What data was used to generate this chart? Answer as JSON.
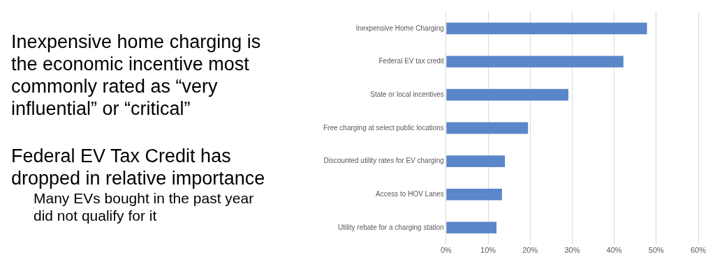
{
  "chart_data": {
    "type": "bar",
    "orientation": "horizontal",
    "categories": [
      "Inexpensive Home Charging",
      "Federal EV tax credit",
      "State or local incentives",
      "Free charging at select public locations",
      "Discounted utility rates for EV charging",
      "Access to HOV Lanes",
      "Utility rebate for a charging station"
    ],
    "values": [
      47.8,
      42.2,
      29.1,
      19.5,
      14.0,
      13.3,
      12.0
    ],
    "color": "#5b86c9",
    "xlim": [
      0,
      60
    ],
    "xticks": [
      {
        "value": 0,
        "label": "0%"
      },
      {
        "value": 10,
        "label": "10%"
      },
      {
        "value": 20,
        "label": "20%"
      },
      {
        "value": 30,
        "label": "30%"
      },
      {
        "value": 40,
        "label": "40%"
      },
      {
        "value": 50,
        "label": "50%"
      },
      {
        "value": 60,
        "label": "60%"
      }
    ],
    "grid": "x",
    "legend": false,
    "annotations": [
      "Inexpensive home charging is the economic incentive most commonly rated as “very influential” or “critical”",
      "Federal EV Tax Credit has dropped in relative importance",
      "Many EVs bought in the past year did not qualify for it"
    ]
  }
}
